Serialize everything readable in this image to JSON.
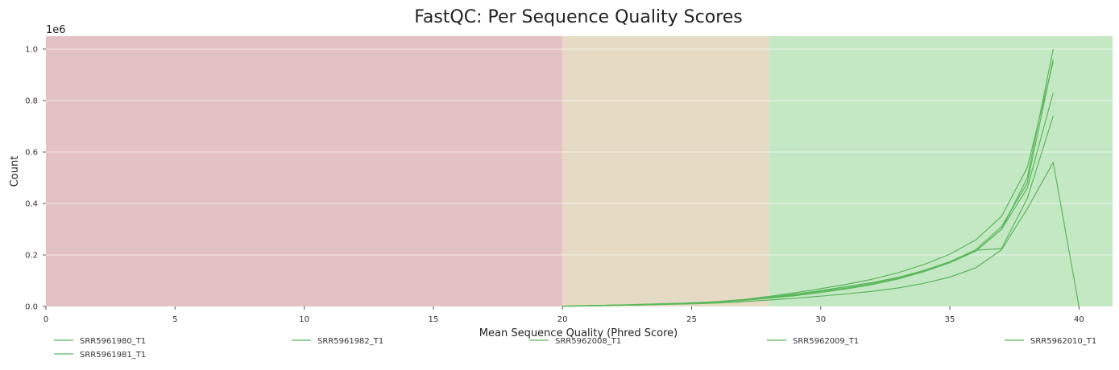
{
  "chart_data": {
    "type": "line",
    "title": "FastQC: Per Sequence Quality Scores",
    "xlabel": "Mean Sequence Quality (Phred Score)",
    "ylabel": "Count",
    "y_offset_label": "1e6",
    "xlim": [
      0,
      41.3
    ],
    "ylim": [
      0,
      1.05
    ],
    "x_ticks": [
      0,
      5,
      10,
      15,
      20,
      25,
      30,
      35,
      40
    ],
    "x_tick_labels": [
      "0",
      "5",
      "10",
      "15",
      "20",
      "25",
      "30",
      "35",
      "40"
    ],
    "y_ticks": [
      0,
      0.2,
      0.4,
      0.6,
      0.8,
      1.0
    ],
    "y_tick_labels": [
      "0.0",
      "0.2",
      "0.4",
      "0.6",
      "0.8",
      "1.0"
    ],
    "grid": true,
    "legend_position": "bottom",
    "background_bands": [
      {
        "from": 0,
        "to": 20,
        "color": "#e4c2c3"
      },
      {
        "from": 20,
        "to": 28,
        "color": "#e5dbc4"
      },
      {
        "from": 28,
        "to": 41.3,
        "color": "#c4e7c4"
      }
    ],
    "series_color": "#5cb85c",
    "x": [
      20,
      21,
      22,
      23,
      24,
      25,
      26,
      27,
      28,
      29,
      30,
      31,
      32,
      33,
      34,
      35,
      36,
      37,
      38,
      39,
      40
    ],
    "series": [
      {
        "name": "SRR5961980_T1",
        "values": [
          0.001,
          0.003,
          0.005,
          0.007,
          0.01,
          0.013,
          0.017,
          0.024,
          0.034,
          0.045,
          0.058,
          0.072,
          0.089,
          0.11,
          0.137,
          0.17,
          0.215,
          0.3,
          0.5,
          1.0,
          null
        ]
      },
      {
        "name": "SRR5961981_T1",
        "values": [
          0.001,
          0.003,
          0.005,
          0.007,
          0.01,
          0.013,
          0.017,
          0.025,
          0.036,
          0.048,
          0.062,
          0.077,
          0.093,
          0.113,
          0.14,
          0.174,
          0.22,
          0.31,
          0.48,
          0.96,
          null
        ]
      },
      {
        "name": "SRR5961982_T1",
        "values": [
          0.001,
          0.003,
          0.005,
          0.008,
          0.011,
          0.014,
          0.019,
          0.027,
          0.039,
          0.053,
          0.069,
          0.086,
          0.106,
          0.131,
          0.163,
          0.203,
          0.258,
          0.35,
          0.54,
          0.95,
          null
        ]
      },
      {
        "name": "SRR5962008_T1",
        "values": [
          0.001,
          0.002,
          0.004,
          0.006,
          0.008,
          0.01,
          0.013,
          0.018,
          0.025,
          0.032,
          0.04,
          0.049,
          0.059,
          0.072,
          0.09,
          0.114,
          0.15,
          0.22,
          0.38,
          0.56,
          0.0
        ]
      },
      {
        "name": "SRR5962009_T1",
        "values": [
          0.001,
          0.003,
          0.005,
          0.007,
          0.01,
          0.013,
          0.017,
          0.024,
          0.034,
          0.045,
          0.058,
          0.072,
          0.089,
          0.11,
          0.137,
          0.17,
          0.215,
          0.3,
          0.46,
          0.83,
          null
        ]
      },
      {
        "name": "SRR5962010_T1",
        "values": [
          0.001,
          0.002,
          0.004,
          0.006,
          0.009,
          0.012,
          0.016,
          0.023,
          0.032,
          0.042,
          0.054,
          0.068,
          0.085,
          0.107,
          0.135,
          0.17,
          0.218,
          0.225,
          0.42,
          0.74,
          null
        ]
      }
    ],
    "legend_order": [
      "SRR5961980_T1",
      "SRR5961982_T1",
      "SRR5962008_T1",
      "SRR5962009_T1",
      "SRR5962010_T1",
      "SRR5961981_T1"
    ]
  }
}
